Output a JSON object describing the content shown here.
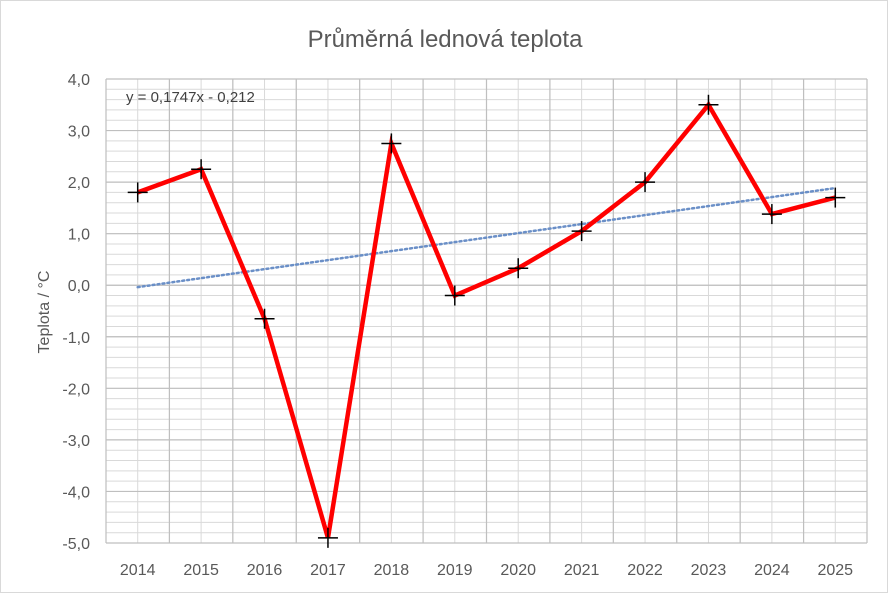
{
  "chart_data": {
    "type": "line",
    "title": "Průměrná lednová teplota",
    "xlabel": "",
    "ylabel": "Teplota / °C",
    "categories": [
      "2014",
      "2015",
      "2016",
      "2017",
      "2018",
      "2019",
      "2020",
      "2021",
      "2022",
      "2023",
      "2024",
      "2025"
    ],
    "series": [
      {
        "values": [
          1.8,
          2.25,
          -0.65,
          -4.9,
          2.75,
          -0.2,
          0.33,
          1.05,
          2.0,
          3.5,
          1.38,
          1.7
        ],
        "color": "#ff0000",
        "marker": "plus"
      }
    ],
    "trendline": {
      "type": "linear",
      "equation": "y = 0,1747x - 0,212",
      "slope": 0.1747,
      "intercept": -0.212,
      "color": "#6a8fc7",
      "style": "dotted"
    },
    "ylim": [
      -5.0,
      4.0
    ],
    "yticks": [
      "4,0",
      "3,0",
      "2,0",
      "1,0",
      "0,0",
      "-1,0",
      "-2,0",
      "-3,0",
      "-4,0",
      "-5,0"
    ],
    "grid": true
  }
}
